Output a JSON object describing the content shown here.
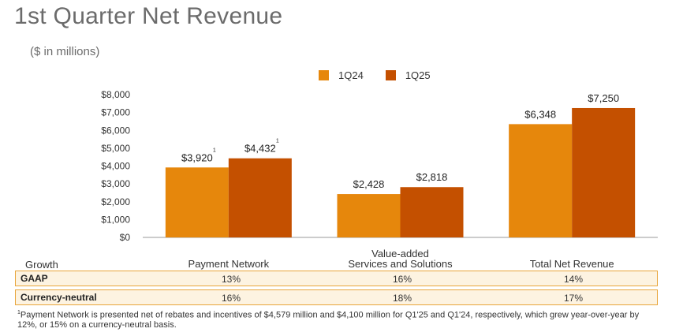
{
  "title": "1st Quarter Net Revenue",
  "subtitle": "($ in millions)",
  "colors": {
    "q24": "#e6870c",
    "q25": "#c45000",
    "axis": "#999999",
    "table_border": "#e8a53a",
    "table_fill": "#fdf3e1"
  },
  "chart_data": {
    "type": "bar",
    "categories": [
      "Payment Network",
      "Value-added Services and Solutions",
      "Total Net Revenue"
    ],
    "category_lines": [
      [
        "Payment Network"
      ],
      [
        "Value-added",
        "Services and Solutions"
      ],
      [
        "Total Net Revenue"
      ]
    ],
    "series": [
      {
        "name": "1Q24",
        "values": [
          3920,
          2428,
          6348
        ],
        "labels": [
          "$3,920",
          "$2,428",
          "$6,348"
        ],
        "footnotes": [
          "1",
          "",
          ""
        ]
      },
      {
        "name": "1Q25",
        "values": [
          4432,
          2818,
          7250
        ],
        "labels": [
          "$4,432",
          "$2,818",
          "$7,250"
        ],
        "footnotes": [
          "1",
          "",
          ""
        ]
      }
    ],
    "ylim": [
      0,
      8000
    ],
    "yticks": [
      0,
      1000,
      2000,
      3000,
      4000,
      5000,
      6000,
      7000,
      8000
    ],
    "ytick_labels": [
      "$0",
      "$1,000",
      "$2,000",
      "$3,000",
      "$4,000",
      "$5,000",
      "$6,000",
      "$7,000",
      "$8,000"
    ],
    "legend_position": "top-center",
    "grid": false
  },
  "growth_table": {
    "header": "Growth",
    "rows": [
      {
        "label": "GAAP",
        "values": [
          "13%",
          "16%",
          "14%"
        ]
      },
      {
        "label": "Currency-neutral",
        "values": [
          "16%",
          "18%",
          "17%"
        ]
      }
    ]
  },
  "footnote": {
    "marker": "1",
    "text": "Payment Network is presented net of rebates and incentives of $4,579 million and $4,100 million for Q1'25 and Q1'24, respectively, which grew year-over-year by 12%, or 15% on a currency-neutral basis."
  }
}
